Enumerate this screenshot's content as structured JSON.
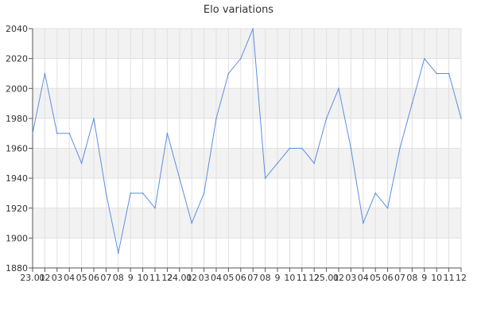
{
  "chart_data": {
    "type": "line",
    "title": "Elo variations",
    "xlabel": "",
    "ylabel": "",
    "ylim": [
      1880,
      2040
    ],
    "y_ticks": [
      1880,
      1900,
      1920,
      1940,
      1960,
      1980,
      2000,
      2020,
      2040
    ],
    "x_tick_labels": [
      "23.01",
      "02",
      "03",
      "04",
      "05",
      "06",
      "07",
      "08",
      "9",
      "10",
      "11",
      "12",
      "24.01",
      "02",
      "03",
      "04",
      "05",
      "06",
      "07",
      "08",
      "9",
      "10",
      "11",
      "12",
      "25.01",
      "02",
      "03",
      "04",
      "05",
      "06",
      "07",
      "08",
      "9",
      "10",
      "11",
      "12"
    ],
    "grid": true,
    "series": [
      {
        "color": "#5b8fe0",
        "values": [
          1970,
          2010,
          1970,
          1970,
          1950,
          1980,
          1930,
          1890,
          1930,
          1930,
          1920,
          1970,
          1940,
          1910,
          1930,
          1980,
          2010,
          2020,
          2040,
          1940,
          1950,
          1960,
          1960,
          1950,
          1980,
          2000,
          1960,
          1910,
          1930,
          1920,
          1960,
          1990,
          2020,
          2010,
          2010,
          1980
        ]
      }
    ],
    "colors": {
      "band": "#f2f2f2",
      "grid": "#e0e0e0",
      "axis": "#555555"
    }
  }
}
